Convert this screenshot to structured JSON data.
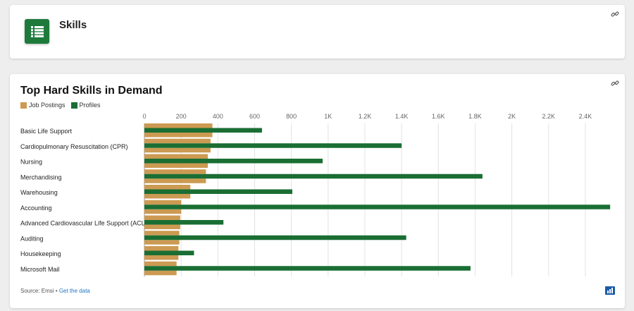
{
  "header": {
    "title": "Skills",
    "icon": "list-icon",
    "icon_color": "#1e7a3b"
  },
  "chart_card": {
    "title": "Top Hard Skills in Demand",
    "footer_source": "Source: Emsi",
    "footer_separator": " • ",
    "footer_link": "Get the data"
  },
  "chart_data": {
    "type": "bar",
    "orientation": "horizontal",
    "title": "Top Hard Skills in Demand",
    "categories": [
      "Basic Life Support",
      "Cardiopulmonary Resuscitation (CPR)",
      "Nursing",
      "Merchandising",
      "Warehousing",
      "Accounting",
      "Advanced Cardiovascular Life Support (ACLS)",
      "Auditing",
      "Housekeeping",
      "Microsoft Mail"
    ],
    "series": [
      {
        "name": "Job Postings",
        "color": "#cc9a52",
        "values": [
          370,
          360,
          345,
          335,
          250,
          200,
          195,
          190,
          185,
          175
        ]
      },
      {
        "name": "Profiles",
        "color": "#1a6e33",
        "values": [
          640,
          1400,
          970,
          1840,
          805,
          2535,
          430,
          1425,
          270,
          1775
        ]
      }
    ],
    "x_ticks": [
      "0",
      "200",
      "400",
      "600",
      "800",
      "1K",
      "1.2K",
      "1.4K",
      "1.6K",
      "1.8K",
      "2K",
      "2.2K",
      "2.4K"
    ],
    "x_tick_values": [
      0,
      200,
      400,
      600,
      800,
      1000,
      1200,
      1400,
      1600,
      1800,
      2000,
      2200,
      2400
    ],
    "xlim": [
      0,
      2550
    ],
    "grid": true,
    "legend_position": "top-left"
  }
}
